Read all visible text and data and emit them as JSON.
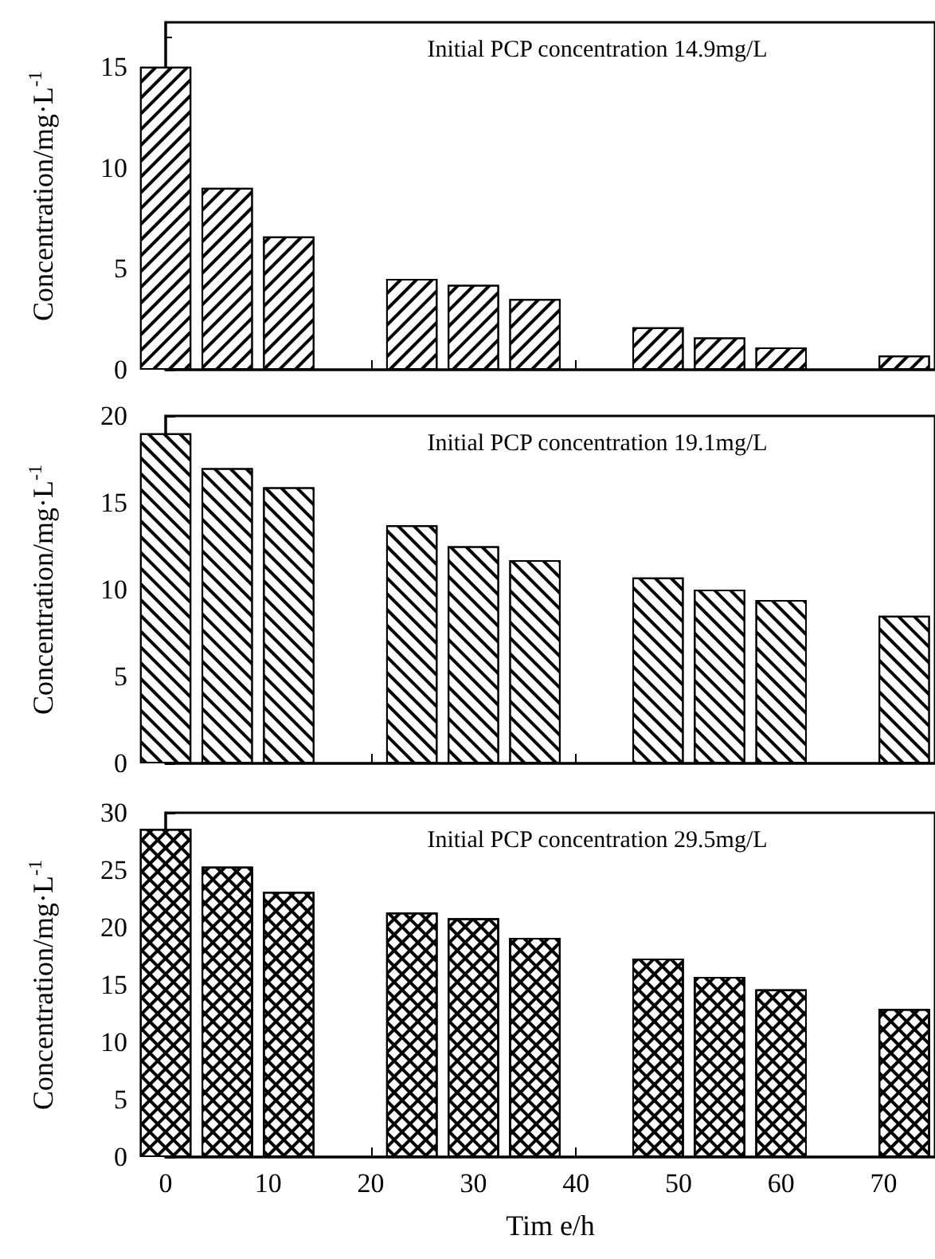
{
  "chart_data": [
    {
      "type": "bar",
      "x": [
        0,
        6,
        12,
        24,
        30,
        36,
        48,
        54,
        60,
        72
      ],
      "values": [
        15,
        9.0,
        6.6,
        4.5,
        4.2,
        3.5,
        2.1,
        1.6,
        1.1,
        0.7
      ],
      "color": "#ffffff",
      "xlim": [
        0,
        75
      ],
      "xticks": [
        0,
        10,
        20,
        30,
        40,
        50,
        60,
        70
      ],
      "ylim": [
        0,
        17.2
      ],
      "yticks": [
        0,
        5,
        10,
        15
      ],
      "ylabel": "Concentration/mg·L$^{-1}$",
      "annotations": [
        "Initial PCP concentration 14.9mg/L"
      ],
      "tick_labels": "y"
    },
    {
      "type": "bar",
      "x": [
        0,
        6,
        12,
        24,
        30,
        36,
        48,
        54,
        60,
        72
      ],
      "values": [
        19.0,
        17.0,
        15.9,
        13.7,
        12.5,
        11.7,
        10.7,
        10.0,
        9.4,
        8.5
      ],
      "color": "#ffffff",
      "xlim": [
        0,
        75
      ],
      "xticks": [
        0,
        10,
        20,
        30,
        40,
        50,
        60,
        70
      ],
      "ylim": [
        0,
        20
      ],
      "yticks": [
        0,
        5,
        10,
        15,
        20
      ],
      "ylabel": "Concentration/mg·L$^{-1}$",
      "annotations": [
        "Initial PCP concentration 19.1mg/L"
      ],
      "tick_labels": "y"
    },
    {
      "type": "bar",
      "x": [
        0,
        6,
        12,
        24,
        30,
        36,
        48,
        54,
        60,
        72
      ],
      "values": [
        28.6,
        25.3,
        23.1,
        21.3,
        20.8,
        19.1,
        17.3,
        15.7,
        14.6,
        12.9
      ],
      "color": "#ffffff",
      "xlim": [
        0,
        75
      ],
      "xticks": [
        0,
        10,
        20,
        30,
        40,
        50,
        60,
        70
      ],
      "ylim": [
        0,
        30
      ],
      "yticks": [
        0,
        5,
        10,
        15,
        20,
        25,
        30
      ],
      "ylabel": "Concentration/mg·L$^{-1}$",
      "xlabel": "Tim e/h",
      "annotations": [
        "Initial PCP concentration 29.5mg/L"
      ]
    }
  ]
}
